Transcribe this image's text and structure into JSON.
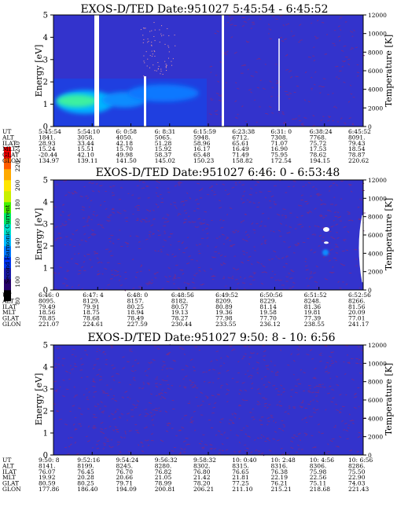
{
  "chart_data": [
    {
      "type": "heatmap",
      "title": "EXOS-D/TED   Date:951027  5:45:54 - 6:45:52",
      "ylabel": "Energy [eV]",
      "y2label": "Temperature [K]",
      "ylim": [
        0,
        5
      ],
      "y2lim": [
        0,
        12000
      ],
      "yticks": [
        "0",
        "1",
        "2",
        "3",
        "4",
        "5"
      ],
      "y2ticks": [
        "0",
        "2000",
        "4000",
        "6000",
        "8000",
        "10000",
        "12000"
      ],
      "rows": [
        {
          "name": "UT",
          "values": [
            "5:45:54",
            "5:54:10",
            "6: 0:58",
            "6: 8:31",
            "6:15:59",
            "6:23:38",
            "6:31: 0",
            "6:38:24",
            "6:45:52"
          ]
        },
        {
          "name": "ALT",
          "values": [
            "1841.",
            "3058.",
            "4050.",
            "5065.",
            "5948.",
            "6712.",
            "7308.",
            "7768.",
            "8091."
          ]
        },
        {
          "name": "ILAT",
          "values": [
            "28.93",
            "33.44",
            "42.18",
            "51.28",
            "58.96",
            "65.61",
            "71.07",
            "75.72",
            "79.43"
          ]
        },
        {
          "name": "MLT",
          "values": [
            "15.24",
            "15.51",
            "15.70",
            "15.92",
            "16.17",
            "16.49",
            "16.90",
            "17.53",
            "18.54"
          ]
        },
        {
          "name": "GLAT",
          "values": [
            "-20.44",
            "42.10",
            "49.98",
            "58.37",
            "65.48",
            "71.49",
            "75.95",
            "78.62",
            "78.87"
          ]
        },
        {
          "name": "GLON",
          "values": [
            "134.97",
            "139.11",
            "141.50",
            "145.02",
            "150.23",
            "158.82",
            "172.54",
            "194.15",
            "220.62"
          ]
        }
      ]
    },
    {
      "type": "heatmap",
      "title": "EXOS-D/TED   Date:951027  6:46: 0 - 6:53:48",
      "ylabel": "Energy [eV]",
      "y2label": "Temperature [K]",
      "ylim": [
        0,
        5
      ],
      "y2lim": [
        0,
        12000
      ],
      "yticks": [
        "0",
        "1",
        "2",
        "3",
        "4",
        "5"
      ],
      "y2ticks": [
        "0",
        "2000",
        "4000",
        "6000",
        "8000",
        "10000",
        "12000"
      ],
      "rows": [
        {
          "name": "UT",
          "values": [
            "6:46: 0",
            "6:47: 4",
            "6:48: 0",
            "6:48:56",
            "6:49:52",
            "6:50:56",
            "6:51:52",
            "6:52:56"
          ]
        },
        {
          "name": "ALT",
          "values": [
            "8095.",
            "8129.",
            "8157.",
            "8182.",
            "8209.",
            "8229.",
            "8248.",
            "8266."
          ]
        },
        {
          "name": "ILAT",
          "values": [
            "79.49",
            "79.91",
            "80.25",
            "80.57",
            "80.89",
            "81.14",
            "81.36",
            "81.56"
          ]
        },
        {
          "name": "MLT",
          "values": [
            "18.56",
            "18.75",
            "18.94",
            "19.13",
            "19.36",
            "19.58",
            "19.81",
            "20.09"
          ]
        },
        {
          "name": "GLAT",
          "values": [
            "78.85",
            "78.68",
            "78.49",
            "78.27",
            "77.98",
            "77.70",
            "77.39",
            "77.01"
          ]
        },
        {
          "name": "GLON",
          "values": [
            "221.07",
            "224.61",
            "227.59",
            "230.44",
            "233.55",
            "236.12",
            "238.55",
            "241.17"
          ]
        }
      ]
    },
    {
      "type": "heatmap",
      "title": "EXOS-D/TED   Date:951027  9:50: 8 - 10: 6:56",
      "ylabel": "Energy [eV]",
      "y2label": "Temperature [K]",
      "ylim": [
        0,
        5
      ],
      "y2lim": [
        0,
        12000
      ],
      "yticks": [
        "0",
        "1",
        "2",
        "3",
        "4",
        "5"
      ],
      "y2ticks": [
        "0",
        "2000",
        "4000",
        "6000",
        "8000",
        "10000",
        "12000"
      ],
      "rows": [
        {
          "name": "UT",
          "values": [
            "9:50: 8",
            "9:52:16",
            "9:54:24",
            "9:56:32",
            "9:58:32",
            "10: 0:40",
            "10: 2:48",
            "10: 4:56",
            "10: 6:56"
          ]
        },
        {
          "name": "ALT",
          "values": [
            "8141.",
            "8199.",
            "8245.",
            "8280.",
            "8302.",
            "8315.",
            "8316.",
            "8306.",
            "8286."
          ]
        },
        {
          "name": "ILAT",
          "values": [
            "76.07",
            "76.45",
            "76.70",
            "76.82",
            "76.80",
            "76.65",
            "76.38",
            "75.98",
            "75.50"
          ]
        },
        {
          "name": "MLT",
          "values": [
            "19.92",
            "20.28",
            "20.66",
            "21.05",
            "21.42",
            "21.81",
            "22.19",
            "22.56",
            "22.90"
          ]
        },
        {
          "name": "GLAT",
          "values": [
            "80.59",
            "80.25",
            "79.71",
            "78.99",
            "78.20",
            "77.25",
            "76.21",
            "75.11",
            "74.03"
          ]
        },
        {
          "name": "GLON",
          "values": [
            "177.86",
            "186.40",
            "194.09",
            "200.81",
            "206.21",
            "211.10",
            "215.21",
            "218.68",
            "221.43"
          ]
        }
      ]
    }
  ],
  "colorbar": {
    "label": "Second Harmonic Current",
    "ticks": [
      "80",
      "100",
      "120",
      "140",
      "160",
      "180",
      "200",
      "220",
      "240"
    ],
    "colors": [
      "#000000",
      "#26006a",
      "#1a1aa8",
      "#0033ee",
      "#0077ff",
      "#00bbff",
      "#00e0c8",
      "#00e864",
      "#44f000",
      "#c8f000",
      "#ffe600",
      "#ffaa00",
      "#ff5a00",
      "#ee0000"
    ]
  },
  "colors": {
    "background_field": "#3333cc",
    "speckle": "#7a2a86"
  }
}
